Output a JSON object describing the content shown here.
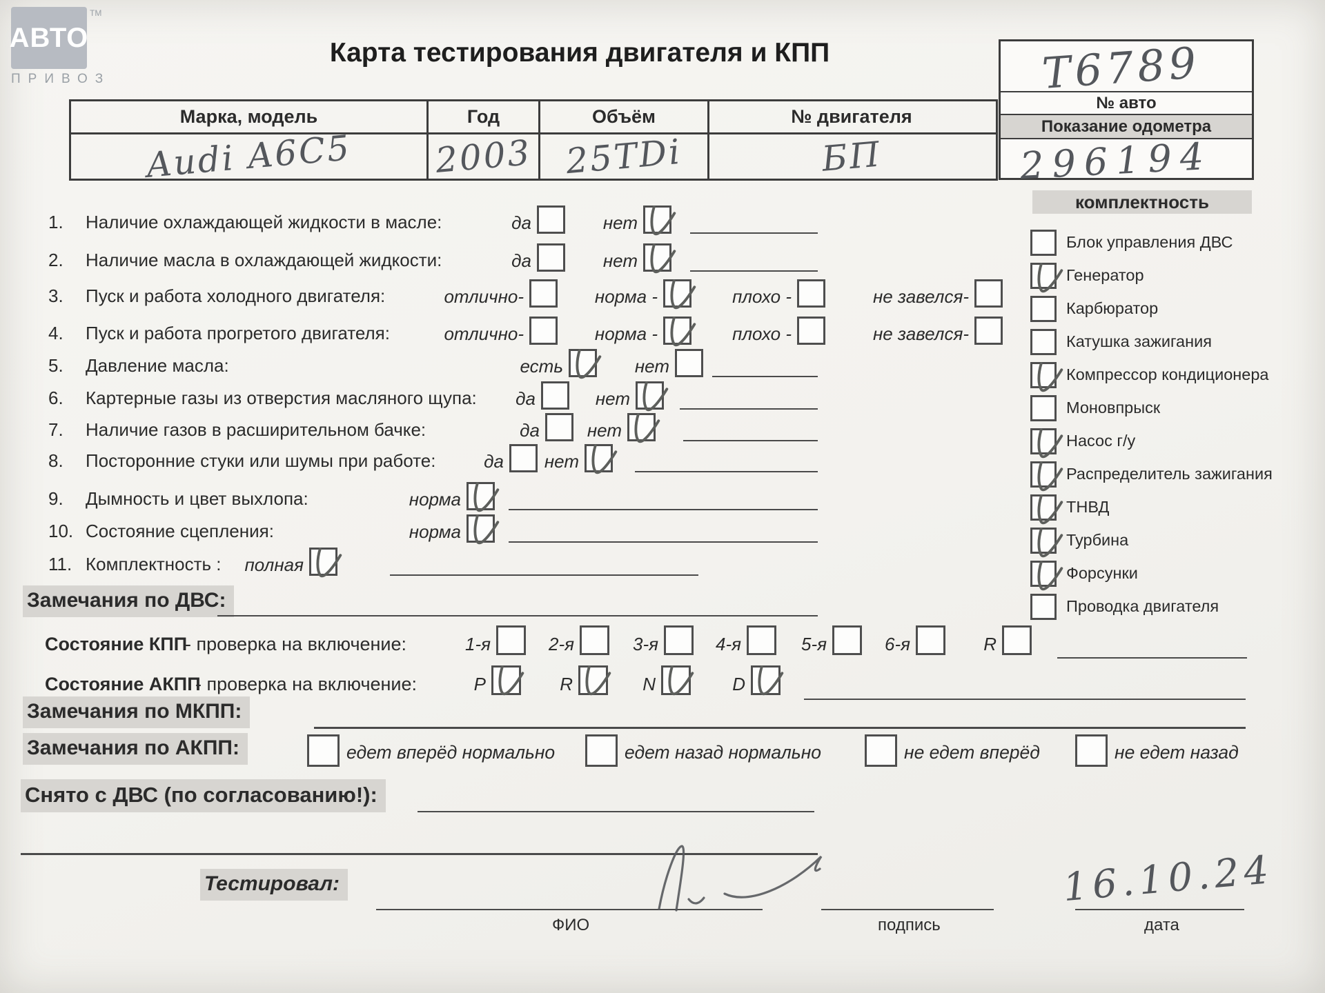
{
  "logo": {
    "top": "АВТО",
    "tm": "TM",
    "bottom": "ПРИВОЗ"
  },
  "title": "Карта тестирования двигателя  и КПП",
  "vehicle_table": {
    "columns": [
      {
        "header": "Марка, модель",
        "value": "Audi A6C5"
      },
      {
        "header": "Год",
        "value": "2003"
      },
      {
        "header": "Объём",
        "value": "25TDi"
      },
      {
        "header": "№ двигателя",
        "value": "БП"
      }
    ]
  },
  "auto_box": {
    "auto_number": "Т6789",
    "auto_number_label": "№ авто",
    "odometer_label": "Показание одометра",
    "odometer_value": "296194"
  },
  "checklist": [
    {
      "num": "1.",
      "label": "Наличие охлаждающей жидкости в масле:",
      "options": [
        {
          "text": "да",
          "checked": false
        },
        {
          "text": "нет",
          "checked": true
        }
      ]
    },
    {
      "num": "2.",
      "label": "Наличие масла в охлаждающей жидкости:",
      "options": [
        {
          "text": "да",
          "checked": false
        },
        {
          "text": "нет",
          "checked": true
        }
      ]
    },
    {
      "num": "3.",
      "label": "Пуск и работа холодного двигателя:",
      "options": [
        {
          "text": "отлично-",
          "checked": false
        },
        {
          "text": "норма -",
          "checked": true
        },
        {
          "text": "плохо -",
          "checked": false
        },
        {
          "text": "не завелся-",
          "checked": false
        }
      ]
    },
    {
      "num": "4.",
      "label": "Пуск и работа прогретого двигателя:",
      "options": [
        {
          "text": "отлично-",
          "checked": false
        },
        {
          "text": "норма -",
          "checked": true
        },
        {
          "text": "плохо -",
          "checked": false
        },
        {
          "text": "не завелся-",
          "checked": false
        }
      ]
    },
    {
      "num": "5.",
      "label": "Давление масла:",
      "options": [
        {
          "text": "есть",
          "checked": true
        },
        {
          "text": "нет",
          "checked": false
        }
      ]
    },
    {
      "num": "6.",
      "label": "Картерные газы из отверстия масляного щупа:",
      "options": [
        {
          "text": "да",
          "checked": false
        },
        {
          "text": "нет",
          "checked": true
        }
      ]
    },
    {
      "num": "7.",
      "label": "Наличие газов в расширительном бачке:",
      "options": [
        {
          "text": "да",
          "checked": false
        },
        {
          "text": "нет",
          "checked": true
        }
      ]
    },
    {
      "num": "8.",
      "label": "Посторонние стуки или шумы при работе:",
      "options": [
        {
          "text": "да",
          "checked": false
        },
        {
          "text": "нет",
          "checked": true
        }
      ]
    },
    {
      "num": "9.",
      "label": "Дымность и цвет выхлопа:",
      "options": [
        {
          "text": "норма",
          "checked": true
        }
      ]
    },
    {
      "num": "10.",
      "label": "Состояние сцепления:",
      "options": [
        {
          "text": "норма",
          "checked": true
        }
      ]
    },
    {
      "num": "11.",
      "label": "Комплектность :",
      "options": [
        {
          "text": "полная",
          "checked": true
        }
      ]
    }
  ],
  "equipment": {
    "header": "комплектность",
    "items": [
      {
        "label": "Блок управления ДВС",
        "checked": false
      },
      {
        "label": "Генератор",
        "checked": true
      },
      {
        "label": "Карбюратор",
        "checked": false
      },
      {
        "label": "Катушка зажигания",
        "checked": false
      },
      {
        "label": "Компрессор кондиционера",
        "checked": true
      },
      {
        "label": "Моновпрыск",
        "checked": false
      },
      {
        "label": "Насос г/у",
        "checked": true
      },
      {
        "label": "Распределитель зажигания",
        "checked": true
      },
      {
        "label": "ТНВД",
        "checked": true
      },
      {
        "label": "Турбина",
        "checked": true
      },
      {
        "label": "Форсунки",
        "checked": true
      },
      {
        "label": "Проводка двигателя",
        "checked": false
      }
    ]
  },
  "remarks_dvs": {
    "label": "Замечания по ДВС:"
  },
  "kpp": {
    "label_bold": "Состояние КПП",
    "label_rest": " - проверка на включение:",
    "gears": [
      {
        "text": "1-я",
        "checked": false
      },
      {
        "text": "2-я",
        "checked": false
      },
      {
        "text": "3-я",
        "checked": false
      },
      {
        "text": "4-я",
        "checked": false
      },
      {
        "text": "5-я",
        "checked": false
      },
      {
        "text": "6-я",
        "checked": false
      },
      {
        "text": "R",
        "checked": false
      }
    ]
  },
  "akpp": {
    "label_bold": "Состояние АКПП",
    "label_rest": " - проверка на включение:",
    "gears": [
      {
        "text": "P",
        "checked": true
      },
      {
        "text": "R",
        "checked": true
      },
      {
        "text": "N",
        "checked": true
      },
      {
        "text": "D",
        "checked": true
      }
    ]
  },
  "remarks_mkpp": {
    "label": "Замечания по МКПП:"
  },
  "remarks_akpp": {
    "label": "Замечания по АКПП:",
    "options": [
      {
        "text": "едет вперёд нормально",
        "checked": false
      },
      {
        "text": "едет назад нормально",
        "checked": false
      },
      {
        "text": "не едет вперёд",
        "checked": false
      },
      {
        "text": "не едет назад",
        "checked": false
      }
    ]
  },
  "removed": {
    "label": "Снято с ДВС (по согласованию!):"
  },
  "footer": {
    "tested_label": "Тестировал:",
    "fio_label": "ФИО",
    "sign_label": "подпись",
    "date_label": "дата",
    "date_value": "16.10.24"
  }
}
